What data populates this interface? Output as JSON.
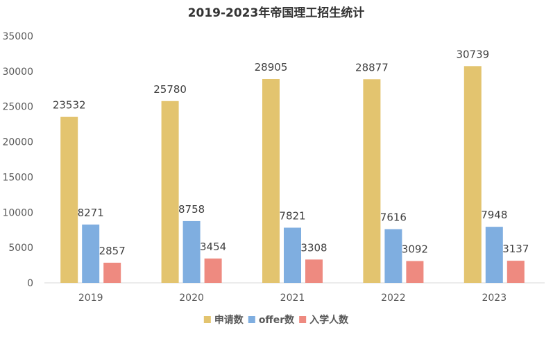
{
  "chart_data": {
    "type": "bar",
    "title": "2019-2023年帝国理工招生统计",
    "categories": [
      "2019",
      "2020",
      "2021",
      "2022",
      "2023"
    ],
    "series": [
      {
        "name": "申请数",
        "values": [
          23532,
          25780,
          28905,
          28877,
          30739
        ],
        "color": "#E3C46F"
      },
      {
        "name": "offer数",
        "values": [
          8271,
          8758,
          7821,
          7616,
          7948
        ],
        "color": "#7FAEE0"
      },
      {
        "name": "入学人数",
        "values": [
          2857,
          3454,
          3308,
          3092,
          3137
        ],
        "color": "#EE8A80"
      }
    ],
    "ylim": [
      0,
      35000
    ],
    "yticks": [
      0,
      5000,
      10000,
      15000,
      20000,
      25000,
      30000,
      35000
    ],
    "grid": false,
    "legend": "bottom"
  }
}
